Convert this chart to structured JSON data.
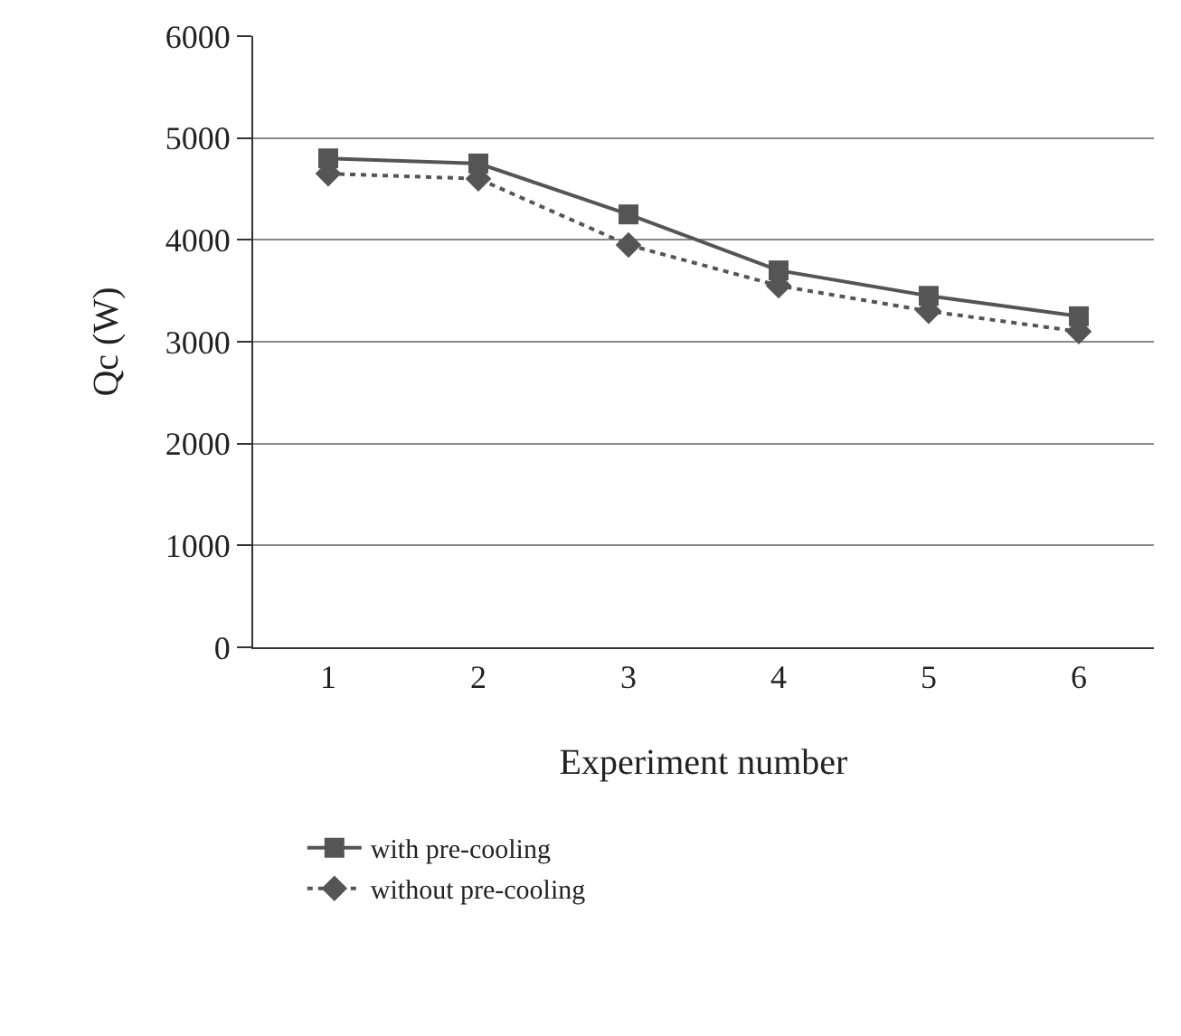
{
  "chart_data": {
    "type": "line",
    "xlabel": "Experiment number",
    "ylabel": "Qc (W)",
    "categories": [
      "1",
      "2",
      "3",
      "4",
      "5",
      "6"
    ],
    "series": [
      {
        "name": "with pre-cooling",
        "color": "#555555",
        "values": [
          4800,
          4750,
          4250,
          3700,
          3450,
          3250
        ],
        "marker": "square",
        "line_style": "solid"
      },
      {
        "name": "without pre-cooling",
        "color": "#555555",
        "values": [
          4650,
          4600,
          3950,
          3550,
          3300,
          3100
        ],
        "marker": "diamond",
        "line_style": "dotted"
      }
    ],
    "ylim": [
      0,
      6000
    ],
    "yticks": [
      0,
      1000,
      2000,
      3000,
      4000,
      5000,
      6000
    ],
    "grid": "y",
    "legend": "bottom"
  }
}
